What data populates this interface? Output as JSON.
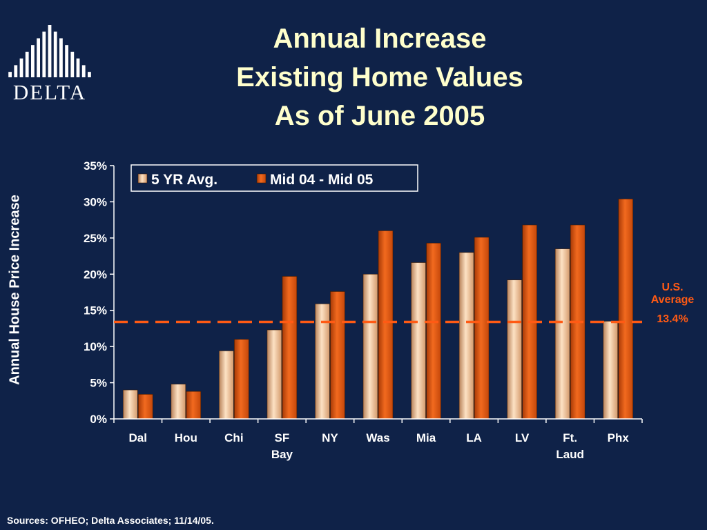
{
  "slide": {
    "title_lines": [
      "Annual Increase",
      "Existing Home Values",
      "As of June 2005"
    ],
    "logo_text": "DELTA",
    "footer": "Sources: OFHEO; Delta Associates; 11/14/05.",
    "colors": {
      "background": "#0f2248",
      "title": "#ffffcc",
      "series_5yr": "#f6c79e",
      "series_mid": "#e2560f",
      "avg_line": "#ff5a14"
    }
  },
  "reference_line": {
    "label_lines": [
      "U.S.",
      "Average"
    ],
    "value_label": "13.4%",
    "value": 13.4
  },
  "chart_data": {
    "type": "bar",
    "ylabel": "Annual House Price Increase",
    "xlabel": "",
    "ylim": [
      0,
      35
    ],
    "y_ticks": [
      "0%",
      "5%",
      "10%",
      "15%",
      "20%",
      "25%",
      "30%",
      "35%"
    ],
    "categories": [
      [
        "Dal"
      ],
      [
        "Hou"
      ],
      [
        "Chi"
      ],
      [
        "SF",
        "Bay"
      ],
      [
        "NY"
      ],
      [
        "Was"
      ],
      [
        "Mia"
      ],
      [
        "LA"
      ],
      [
        "LV"
      ],
      [
        "Ft.",
        "Laud"
      ],
      [
        "Phx"
      ]
    ],
    "series": [
      {
        "name": "5 YR Avg.",
        "values": [
          4.0,
          4.8,
          9.4,
          12.3,
          15.9,
          20.0,
          21.6,
          23.0,
          19.2,
          23.5,
          13.5
        ]
      },
      {
        "name": "Mid 04 - Mid 05",
        "values": [
          3.4,
          3.8,
          11.0,
          19.7,
          17.6,
          26.0,
          24.3,
          25.1,
          26.8,
          26.8,
          30.4
        ]
      }
    ],
    "legend_position": "top",
    "grid": false
  }
}
